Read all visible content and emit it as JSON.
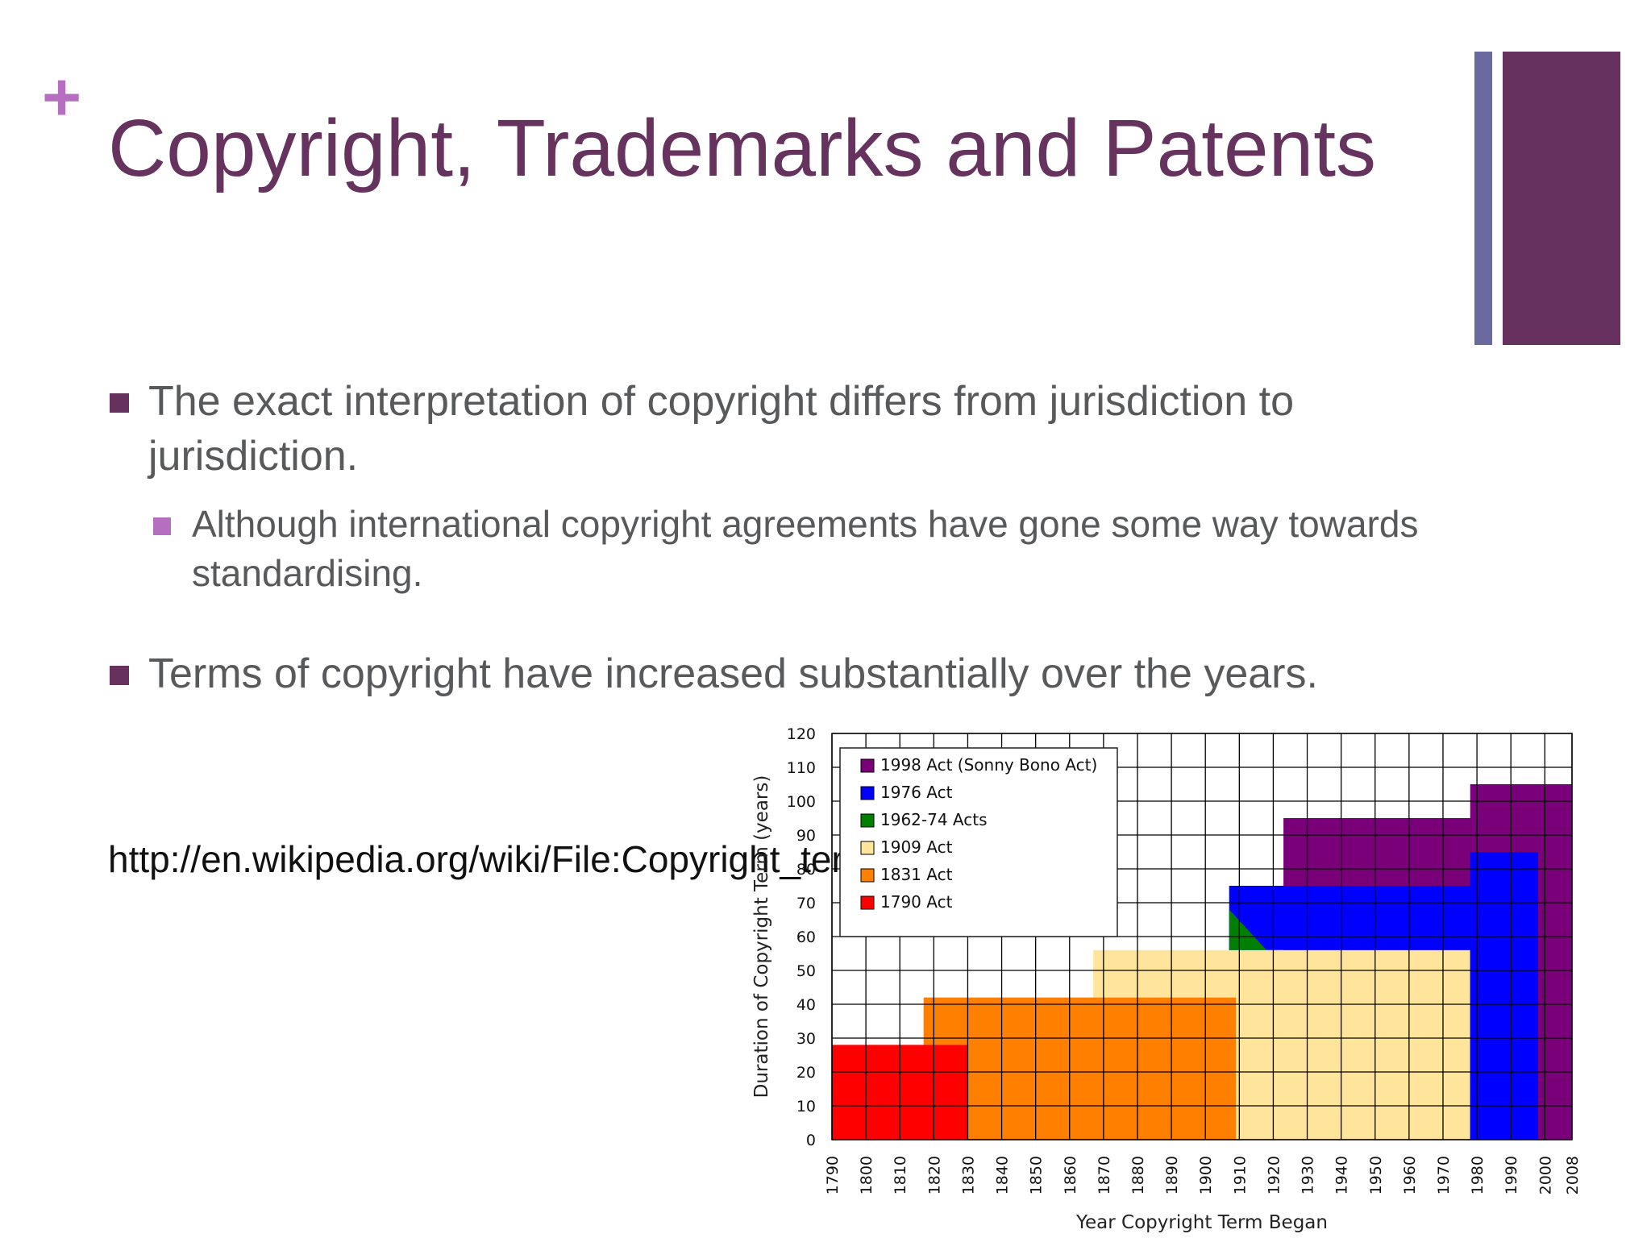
{
  "slide": {
    "plus": "+",
    "title": "Copyright, Trademarks and Patents",
    "bullets": [
      "The exact interpretation of copyright differs from jurisdiction to jurisdiction.",
      "Although international copyright agreements have gone some way towards standardising.",
      "Terms of copyright have increased substantially over the years."
    ],
    "source_url": "http://en.wikipedia.org/wiki/File:Copyright_term.svg",
    "colors": {
      "title": "#66335f",
      "accent_dark": "#66305f",
      "accent_blue": "#6a6a9f",
      "accent_pink": "#b66fc0",
      "body_text": "#58595b"
    }
  },
  "chart_data": {
    "type": "area",
    "title": "",
    "xlabel": "Year Copyright Term Began",
    "ylabel": "Duration of Copyright Term (years)",
    "xlim": [
      1790,
      2008
    ],
    "ylim": [
      0,
      120
    ],
    "x_ticks": [
      1790,
      1800,
      1810,
      1820,
      1830,
      1840,
      1850,
      1860,
      1870,
      1880,
      1890,
      1900,
      1910,
      1920,
      1930,
      1940,
      1950,
      1960,
      1970,
      1980,
      1990,
      2000,
      2008
    ],
    "y_ticks": [
      0,
      10,
      20,
      30,
      40,
      50,
      60,
      70,
      80,
      90,
      100,
      110,
      120
    ],
    "grid": true,
    "legend_position": "top-left",
    "series": [
      {
        "name": "1998 Act (Sonny Bono Act)",
        "color": "#7a007a",
        "points": [
          [
            1923,
            0
          ],
          [
            1923,
            95
          ],
          [
            1978,
            95
          ],
          [
            1978,
            105
          ],
          [
            2008,
            105
          ],
          [
            2008,
            0
          ]
        ]
      },
      {
        "name": "1976 Act",
        "color": "#0000ff",
        "points": [
          [
            1907,
            56
          ],
          [
            1907,
            75
          ],
          [
            1978,
            75
          ],
          [
            1978,
            85
          ],
          [
            1998,
            85
          ],
          [
            1998,
            0
          ],
          [
            1978,
            0
          ],
          [
            1978,
            56
          ]
        ]
      },
      {
        "name": "1962-74 Acts",
        "color": "#007f00",
        "points": [
          [
            1907,
            56
          ],
          [
            1907,
            68
          ],
          [
            1918,
            56
          ]
        ]
      },
      {
        "name": "1909 Act",
        "color": "#ffe49b",
        "points": [
          [
            1867,
            42
          ],
          [
            1867,
            56
          ],
          [
            1978,
            56
          ],
          [
            1978,
            0
          ],
          [
            1909,
            0
          ],
          [
            1909,
            42
          ]
        ]
      },
      {
        "name": "1831 Act",
        "color": "#ff7f00",
        "points": [
          [
            1830,
            0
          ],
          [
            1830,
            28
          ],
          [
            1817,
            28
          ],
          [
            1817,
            42
          ],
          [
            1909,
            42
          ],
          [
            1909,
            0
          ]
        ]
      },
      {
        "name": "1790 Act",
        "color": "#ff0000",
        "points": [
          [
            1790,
            0
          ],
          [
            1790,
            28
          ],
          [
            1830,
            28
          ],
          [
            1830,
            0
          ]
        ]
      }
    ],
    "legend_order": [
      "1998 Act (Sonny Bono Act)",
      "1976 Act",
      "1962-74 Acts",
      "1909 Act",
      "1831 Act",
      "1790 Act"
    ]
  }
}
